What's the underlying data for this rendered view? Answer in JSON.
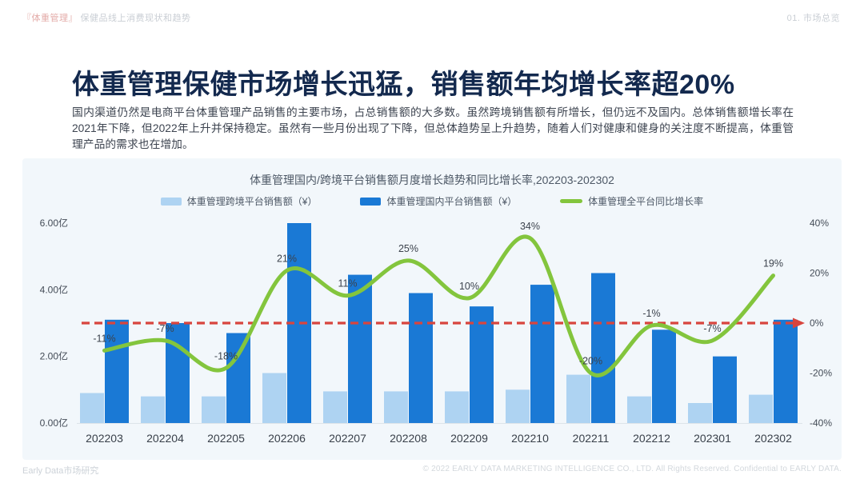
{
  "header": {
    "left_tag": "『体重管理』",
    "left_rest": " 保健品线上消费现状和趋势",
    "right": "01. 市场总览"
  },
  "title": "体重管理保健市场增长迅猛，销售额年均增长率超20%",
  "paragraph": "国内渠道仍然是电商平台体重管理产品销售的主要市场，占总销售额的大多数。虽然跨境销售额有所增长，但仍远不及国内。总体销售额增长率在2021年下降，但2022年上升并保持稳定。虽然有一些月份出现了下降，但总体趋势呈上升趋势，随着人们对健康和健身的关注度不断提高，体重管理产品的需求也在增加。",
  "chart_data": {
    "type": "bar",
    "subtype": "combo-bar-line",
    "title": "体重管理国内/跨境平台销售额月度增长趋势和同比增长率,202203-202302",
    "categories": [
      "202203",
      "202204",
      "202205",
      "202206",
      "202207",
      "202208",
      "202209",
      "202210",
      "202211",
      "202212",
      "202301",
      "202302"
    ],
    "series": [
      {
        "name": "体重管理跨境平台销售额（¥）",
        "type": "bar",
        "color": "#aed3f2",
        "values": [
          0.9,
          0.8,
          0.8,
          1.5,
          0.95,
          0.95,
          0.95,
          1.0,
          1.45,
          0.8,
          0.6,
          0.85
        ],
        "unit": "亿"
      },
      {
        "name": "体重管理国内平台销售额（¥）",
        "type": "bar",
        "color": "#1a79d5",
        "values": [
          3.1,
          3.0,
          2.7,
          6.0,
          4.45,
          3.9,
          3.5,
          4.15,
          4.5,
          2.8,
          2.0,
          3.1
        ],
        "unit": "亿"
      },
      {
        "name": "体重管理全平台同比增长率",
        "type": "line",
        "color": "#83c53d",
        "values": [
          -11,
          -7,
          -18,
          21,
          11,
          25,
          10,
          34,
          -20,
          -1,
          -7,
          19
        ],
        "labels": [
          "-11%",
          "-7%",
          "-18%",
          "21%",
          "11%",
          "25%",
          "10%",
          "34%",
          "-20%",
          "-1%",
          "-7%",
          "19%"
        ],
        "unit": "%"
      }
    ],
    "left_axis": {
      "ticks": [
        "0.00亿",
        "2.00亿",
        "4.00亿",
        "6.00亿"
      ],
      "min": 0,
      "max": 6
    },
    "right_axis": {
      "ticks": [
        "-40%",
        "-20%",
        "0%",
        "20%",
        "40%"
      ],
      "min": -40,
      "max": 40
    },
    "reference_line": {
      "value": 0,
      "color": "#d8453e",
      "style": "dashed-arrow"
    },
    "layout": {
      "grid": false,
      "legend_position": "top-center",
      "panel_background": "#f2f7fb"
    }
  },
  "footer": {
    "left": "Early Data市场研究",
    "right": "© 2022 EARLY DATA MARKETING INTELLIGENCE CO., LTD. All Rights Reserved. Confidential to EARLY DATA."
  }
}
